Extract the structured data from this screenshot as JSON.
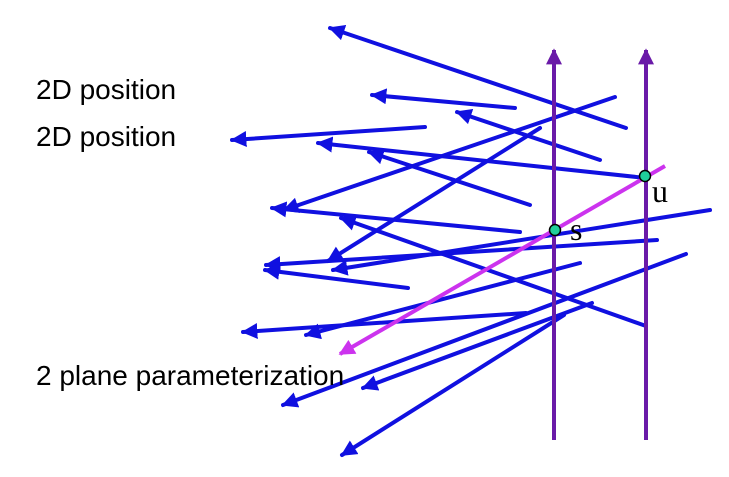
{
  "labels": {
    "position_1": "2D position",
    "position_2": "2D position",
    "parameterization": "2 plane parameterization"
  },
  "points": {
    "s": "s",
    "u": "u"
  },
  "colors": {
    "ray": "#1010e0",
    "plane": "#6a1aa8",
    "highlight_ray": "#cc33ee",
    "point_fill": "#1fcf9a",
    "background": "#ffffff"
  }
}
